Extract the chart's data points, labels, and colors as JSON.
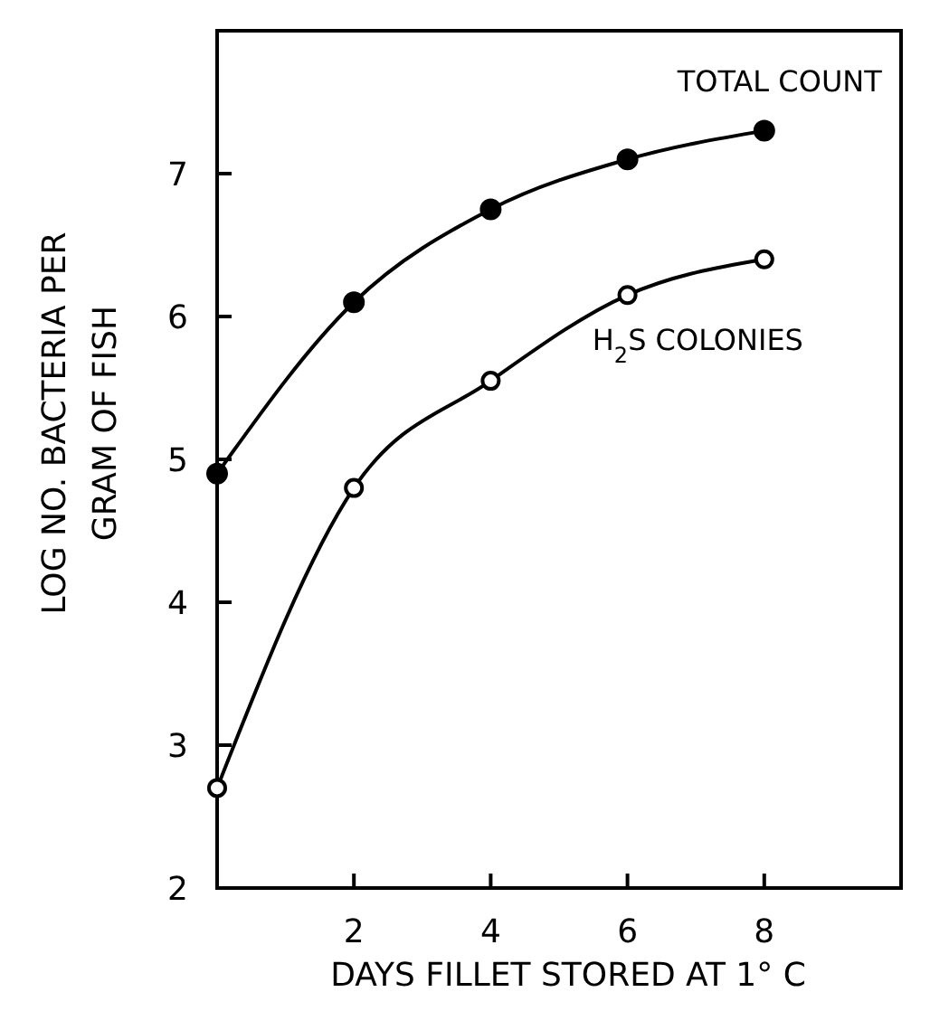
{
  "chart_data": {
    "type": "line",
    "xlabel": "DAYS FILLET STORED AT 1° C",
    "ylabel": "LOG NO. BACTERIA PER GRAM OF FISH",
    "x": [
      0,
      2,
      4,
      6,
      8
    ],
    "series": [
      {
        "name": "TOTAL COUNT",
        "color": "#000000",
        "marker": "circle",
        "values": [
          4.9,
          6.1,
          6.75,
          7.1,
          7.3
        ]
      },
      {
        "name": "H$_{2}$S COLONIES",
        "color": "#000000",
        "marker": "circle-open",
        "values": [
          2.7,
          4.8,
          5.55,
          6.15,
          6.4
        ]
      }
    ],
    "xlim": [
      0,
      10
    ],
    "ylim": [
      2,
      8
    ],
    "xticks": [
      {
        "value": 0,
        "label": null
      },
      2,
      4,
      6,
      8
    ],
    "yticks": [
      2,
      3,
      4,
      5,
      6,
      7
    ],
    "grid": false,
    "line_style": "solid"
  }
}
